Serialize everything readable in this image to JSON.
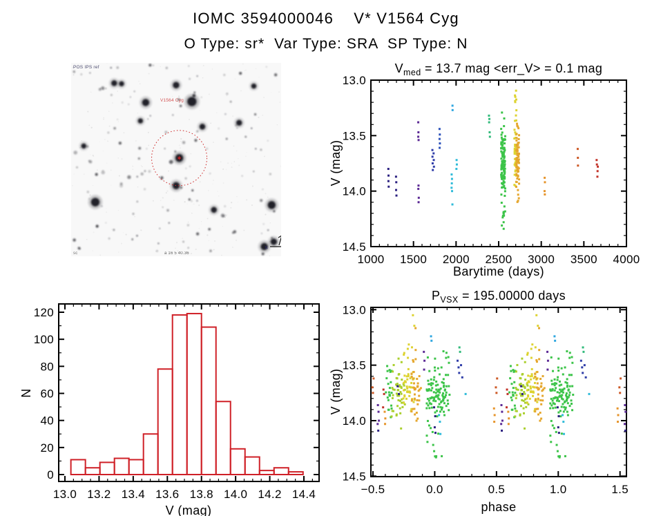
{
  "header": {
    "title": "IOMC 3594000046    V* V1564 Cyg",
    "subtitle": "O Type: sr*  Var Type: SRA  SP Type: N"
  },
  "starfield": {
    "bg": "#f8f8f8",
    "seed": 7,
    "n_small": 130,
    "n_speckle": 170,
    "big_stars": [
      [
        0.575,
        0.2,
        6.5
      ],
      [
        0.355,
        0.205,
        5
      ],
      [
        0.5,
        0.115,
        4.5
      ],
      [
        0.205,
        0.105,
        4
      ],
      [
        0.24,
        0.108,
        3.5
      ],
      [
        0.115,
        0.72,
        6
      ],
      [
        0.955,
        0.735,
        5.5
      ],
      [
        0.5,
        0.635,
        5
      ],
      [
        0.92,
        0.95,
        5
      ],
      [
        0.965,
        0.925,
        4.5
      ],
      [
        0.625,
        0.33,
        4
      ],
      [
        0.8,
        0.31,
        4
      ],
      [
        0.33,
        0.3,
        3.5
      ],
      [
        0.87,
        0.12,
        3.5
      ],
      [
        0.06,
        0.43,
        3.5
      ],
      [
        0.68,
        0.76,
        4
      ]
    ],
    "target": {
      "fx": 0.515,
      "fy": 0.492,
      "r": 5.5
    },
    "circle": {
      "fx": 0.515,
      "fy": 0.492,
      "r": 40,
      "color": "#cc2222"
    },
    "labels": {
      "top_left": "POS IPS ref",
      "target": "V1564 Cyg",
      "bottom": "a 16 5 40.36",
      "bottom_left": "sc",
      "compass_e": "E"
    },
    "label_color": "#cc3333"
  },
  "chart_data": [
    {
      "id": "lightcurve",
      "type": "scatter",
      "title_segments": [
        {
          "t": "V"
        },
        {
          "t": "med",
          "sub": true
        },
        {
          "t": " = 13.7 mag <err_V> = 0.1 mag"
        }
      ],
      "xlabel": "Barytime (days)",
      "ylabel": "V (mag)",
      "x_range": [
        1000,
        4000
      ],
      "y_range": [
        13.0,
        14.5
      ],
      "y_inverted": true,
      "x_ticks": {
        "values": [
          1000,
          1500,
          2000,
          2500,
          3000,
          3500,
          4000
        ],
        "labels": [
          "1000",
          "1500",
          "2000",
          "2500",
          "3000",
          "3500",
          "4000"
        ]
      },
      "y_ticks": {
        "values": [
          13.0,
          13.5,
          14.0,
          14.5
        ],
        "labels": [
          "13.0",
          "13.5",
          "14.0",
          "14.5"
        ]
      },
      "x_minor": 100,
      "y_minor": 0.1,
      "clusters": [
        {
          "color": "#2b2080",
          "pts": [
            [
              1205,
              13.8
            ],
            [
              1207,
              13.86
            ],
            [
              1206,
              13.91
            ],
            [
              1209,
              13.96
            ],
            [
              1295,
              13.87
            ],
            [
              1298,
              13.92
            ],
            [
              1296,
              13.99
            ],
            [
              1300,
              14.04
            ]
          ]
        },
        {
          "color": "#5c2a95",
          "pts": [
            [
              1556,
              13.38
            ],
            [
              1558,
              13.47
            ],
            [
              1556,
              13.51
            ],
            [
              1560,
              13.54
            ],
            [
              1559,
              13.95
            ],
            [
              1557,
              13.98
            ],
            [
              1562,
              14.06
            ],
            [
              1560,
              14.1
            ]
          ]
        },
        {
          "color": "#2f3da8",
          "pts": [
            [
              1722,
              13.63
            ],
            [
              1736,
              13.66
            ],
            [
              1723,
              13.69
            ],
            [
              1738,
              13.72
            ],
            [
              1725,
              13.75
            ],
            [
              1740,
              13.78
            ],
            [
              1727,
              13.81
            ]
          ]
        },
        {
          "color": "#2d52bb",
          "pts": [
            [
              1806,
              13.44
            ],
            [
              1809,
              13.49
            ],
            [
              1806,
              13.53
            ],
            [
              1810,
              13.57
            ],
            [
              1807,
              13.61
            ]
          ]
        },
        {
          "color": "#2fa7e0",
          "pts": [
            [
              1958,
              13.23
            ],
            [
              1959,
              13.27
            ]
          ]
        },
        {
          "color": "#2fbbd9",
          "pts": [
            [
              2006,
              13.72
            ],
            [
              2009,
              13.76
            ],
            [
              2004,
              13.8
            ],
            [
              1948,
              13.85
            ],
            [
              1952,
              13.89
            ],
            [
              1950,
              13.93
            ],
            [
              1947,
              13.97
            ],
            [
              1953,
              14.0
            ],
            [
              1957,
              14.12
            ]
          ]
        },
        {
          "color": "#31ba7b",
          "pts": [
            [
              2386,
              13.32
            ],
            [
              2391,
              13.35
            ],
            [
              2388,
              13.38
            ],
            [
              2394,
              13.47
            ],
            [
              2397,
              13.51
            ]
          ]
        },
        {
          "color": "#3cc449",
          "stripe": {
            "x": 2553,
            "xj": 24,
            "v": [
              13.28,
              14.35
            ],
            "dense": [
              13.45,
              14.05
            ],
            "n": 130
          }
        },
        {
          "color": "#ddd331",
          "stripe": {
            "x": 2697,
            "xj": 14,
            "v": [
              13.02,
              13.97
            ],
            "dense": [
              13.4,
              13.95
            ],
            "n": 55
          }
        },
        {
          "color": "#e5a72e",
          "stripe": {
            "x": 2722,
            "xj": 18,
            "v": [
              13.3,
              14.1
            ],
            "dense": [
              13.5,
              14.0
            ],
            "n": 75
          }
        },
        {
          "color": "#e6952c",
          "pts": [
            [
              3040,
              13.88
            ],
            [
              3043,
              13.92
            ],
            [
              3039,
              14.0
            ],
            [
              3042,
              14.03
            ]
          ]
        },
        {
          "color": "#cd5a27",
          "pts": [
            [
              3428,
              13.62
            ],
            [
              3430,
              13.7
            ],
            [
              3431,
              13.77
            ]
          ]
        },
        {
          "color": "#c23329",
          "pts": [
            [
              3650,
              13.72
            ],
            [
              3653,
              13.76
            ],
            [
              3664,
              13.78
            ],
            [
              3661,
              13.82
            ],
            [
              3659,
              13.87
            ]
          ]
        }
      ]
    },
    {
      "id": "histogram",
      "type": "bar",
      "xlabel": "V (mag)",
      "ylabel": "N",
      "color": "#cf2027",
      "bin_start": 13.035,
      "bin_width": 0.085,
      "values": [
        11,
        5,
        9,
        12,
        11,
        30,
        78,
        118,
        119,
        109,
        54,
        19,
        13,
        3,
        5,
        2
      ],
      "x_range": [
        13.0,
        14.45
      ],
      "y_range": [
        0,
        120
      ],
      "x_ticks": {
        "values": [
          13.0,
          13.2,
          13.4,
          13.6,
          13.8,
          14.0,
          14.2,
          14.4
        ],
        "labels": [
          "13.0",
          "13.2",
          "13.4",
          "13.6",
          "13.8",
          "14.0",
          "14.2",
          "14.4"
        ]
      },
      "y_ticks": {
        "values": [
          0,
          20,
          40,
          60,
          80,
          100,
          120
        ],
        "labels": [
          "0",
          "20",
          "40",
          "60",
          "80",
          "100",
          "120"
        ]
      },
      "x_minor": 0.05,
      "y_minor": 10
    },
    {
      "id": "phase",
      "type": "scatter",
      "title_segments": [
        {
          "t": "P"
        },
        {
          "t": "VSX",
          "sub": true
        },
        {
          "t": " = 195.00000 days"
        }
      ],
      "xlabel": "phase",
      "ylabel": "V (mag)",
      "x_range": [
        -0.5,
        1.5
      ],
      "y_range": [
        13.0,
        14.5
      ],
      "y_inverted": true,
      "repeat": [
        -1,
        0,
        1,
        2
      ],
      "x_ticks": {
        "values": [
          -0.5,
          0.0,
          0.5,
          1.0,
          1.5
        ],
        "labels": [
          "−0.5",
          "0.0",
          "0.5",
          "1.0",
          "1.5"
        ]
      },
      "y_ticks": {
        "values": [
          13.0,
          13.5,
          14.0,
          14.5
        ],
        "labels": [
          "13.0",
          "13.5",
          "14.0",
          "14.5"
        ]
      },
      "x_minor": 0.1,
      "y_minor": 0.1,
      "clusters": [
        {
          "color": "#cd5a27",
          "pts": [
            [
              -0.505,
              13.7
            ],
            [
              -0.5,
              13.75
            ],
            [
              -0.495,
              13.62
            ]
          ]
        },
        {
          "color": "#e6952c",
          "pts": [
            [
              -0.52,
              13.89
            ],
            [
              -0.515,
              13.95
            ],
            [
              -0.518,
              14.01
            ]
          ]
        },
        {
          "color": "#5c2a95",
          "pts": [
            [
              -0.46,
              13.86
            ],
            [
              -0.455,
              13.92
            ],
            [
              -0.452,
              14.0
            ],
            [
              -0.462,
              14.03
            ]
          ]
        },
        {
          "color": "#2b2080",
          "pts": [
            [
              -0.457,
              14.09
            ]
          ]
        },
        {
          "color": "#c23329",
          "pts": [
            [
              -0.415,
              13.72
            ],
            [
              -0.41,
              13.76
            ],
            [
              -0.418,
              13.88
            ]
          ]
        },
        {
          "color": "#e6952c",
          "pts": [
            [
              -0.405,
              13.92
            ],
            [
              -0.4,
              13.98
            ],
            [
              -0.402,
              14.03
            ]
          ]
        },
        {
          "color": "#3cc449",
          "stripe": {
            "x": -0.37,
            "xj": 0.03,
            "v": [
              13.48,
              13.98
            ],
            "n": 22
          }
        },
        {
          "color": "#aacf2d",
          "stripe": {
            "x": -0.295,
            "xj": 0.055,
            "v": [
              13.4,
              14.13
            ],
            "dense": [
              13.55,
              14.0
            ],
            "n": 48
          }
        },
        {
          "color": "#2b2080",
          "pts": [
            [
              -0.3,
              13.69
            ],
            [
              -0.29,
              13.76
            ]
          ]
        },
        {
          "color": "#ddd331",
          "stripe": {
            "x": -0.21,
            "xj": 0.05,
            "v": [
              13.03,
              13.97
            ],
            "dense": [
              13.52,
              13.95
            ],
            "n": 45
          }
        },
        {
          "color": "#e5a72e",
          "stripe": {
            "x": -0.148,
            "xj": 0.04,
            "v": [
              13.06,
              14.05
            ],
            "dense": [
              13.53,
              13.95
            ],
            "n": 40
          }
        },
        {
          "color": "#5c2a95",
          "pts": [
            [
              -0.088,
              13.38
            ],
            [
              -0.083,
              13.46
            ],
            [
              -0.086,
              13.54
            ]
          ]
        },
        {
          "color": "#2fa7e0",
          "pts": [
            [
              -0.03,
              13.24
            ],
            [
              -0.026,
              13.28
            ]
          ]
        },
        {
          "color": "#3cc449",
          "stripe": {
            "x": 0.005,
            "xj": 0.07,
            "v": [
              13.42,
              14.34
            ],
            "dense": [
              13.58,
              13.98
            ],
            "n": 95
          }
        },
        {
          "color": "#2b2080",
          "pts": [
            [
              -0.005,
              13.88
            ],
            [
              0.004,
              13.96
            ],
            [
              0.0,
              14.06
            ],
            [
              0.006,
              14.11
            ]
          ]
        },
        {
          "color": "#2fbbd9",
          "pts": [
            [
              0.035,
              13.95
            ],
            [
              0.042,
              14.01
            ],
            [
              0.046,
              14.12
            ]
          ]
        },
        {
          "color": "#3cc449",
          "stripe": {
            "x": 0.095,
            "xj": 0.03,
            "v": [
              13.3,
              13.96
            ],
            "n": 22
          }
        },
        {
          "color": "#31ba7b",
          "pts": [
            [
              0.2,
              13.34
            ],
            [
              0.205,
              13.38
            ]
          ]
        },
        {
          "color": "#2f3da8",
          "pts": [
            [
              0.185,
              13.46
            ],
            [
              0.193,
              13.52
            ],
            [
              0.198,
              13.57
            ],
            [
              0.213,
              13.5
            ],
            [
              0.223,
              13.61
            ]
          ]
        },
        {
          "color": "#2fbbd9",
          "pts": [
            [
              0.25,
              13.76
            ]
          ]
        }
      ]
    }
  ]
}
